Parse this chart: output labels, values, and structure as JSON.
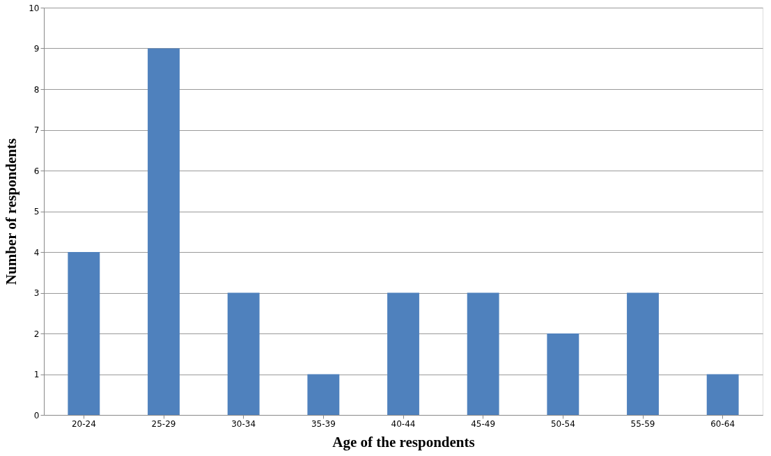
{
  "chart_data": {
    "type": "bar",
    "xlabel": "Age of the respondents",
    "ylabel": "Number of respondents",
    "categories": [
      "20-24",
      "25-29",
      "30-34",
      "35-39",
      "40-44",
      "45-49",
      "50-54",
      "55-59",
      "60-64"
    ],
    "values": [
      4,
      9,
      3,
      1,
      3,
      3,
      2,
      3,
      1
    ],
    "color": "#4f81bd",
    "ylim": [
      0,
      10
    ],
    "yticks": [
      0,
      1,
      2,
      3,
      4,
      5,
      6,
      7,
      8,
      9,
      10
    ],
    "grid": "y"
  }
}
